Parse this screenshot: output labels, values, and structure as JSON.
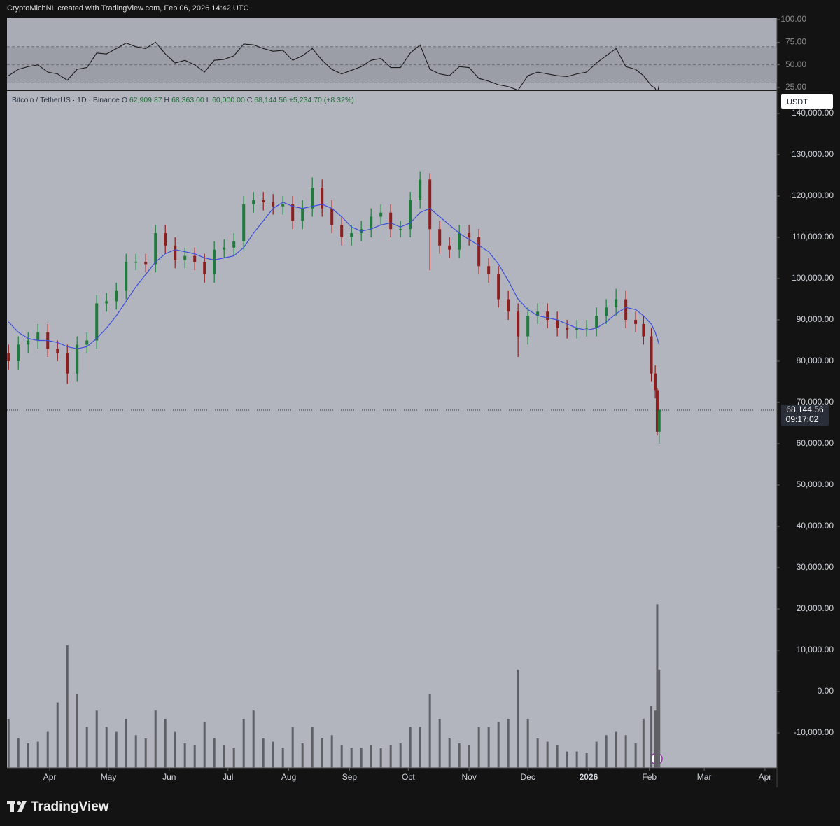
{
  "header": "CryptoMichNL created with TradingView.com, Feb 06, 2026 14:42 UTC",
  "brand": "TradingView",
  "chart_data": {
    "type": "candlestick",
    "legend_title": "Bitcoin / TetherUS · 1D · Binance",
    "legend_ohlc": [
      {
        "key": "O",
        "text": "62,909.87"
      },
      {
        "key": "H",
        "text": "68,363.00"
      },
      {
        "key": "L",
        "text": "60,000.00"
      },
      {
        "key": "C",
        "text": "68,144.56"
      }
    ],
    "change_text": "+5,234.70 (+8.32%)",
    "currency": "USDT",
    "last_price": {
      "value": 68144.56,
      "label": "68,144.56"
    },
    "countdown": "09:17:02",
    "up_color": "#1f7a3c",
    "down_color": "#8e1d1d",
    "ma_color": "#3d4fd6",
    "volume_color": "#5f6066",
    "rsi_color": "#1a1a1a",
    "x": [
      -21,
      -16,
      -11,
      -6,
      -1,
      4,
      9,
      14,
      19,
      24,
      29,
      34,
      39,
      44,
      49,
      54,
      59,
      64,
      69,
      74,
      79,
      84,
      89,
      94,
      99,
      104,
      109,
      114,
      119,
      124,
      129,
      134,
      139,
      144,
      149,
      154,
      159,
      164,
      169,
      174,
      179,
      184,
      189,
      194,
      199,
      204,
      209,
      214,
      219,
      224,
      229,
      234,
      239,
      244,
      249,
      254,
      259,
      264,
      269,
      274,
      279,
      284,
      289,
      294,
      299,
      303,
      307,
      309,
      310,
      311
    ],
    "xlim": [
      -21.8,
      371.1
    ],
    "xticks": [
      {
        "value": 0,
        "label": "Apr"
      },
      {
        "value": 30,
        "label": "May"
      },
      {
        "value": 61,
        "label": "Jun"
      },
      {
        "value": 91,
        "label": "Jul"
      },
      {
        "value": 122,
        "label": "Aug"
      },
      {
        "value": 153,
        "label": "Sep"
      },
      {
        "value": 183,
        "label": "Oct"
      },
      {
        "value": 214,
        "label": "Nov"
      },
      {
        "value": 244,
        "label": "Dec"
      },
      {
        "value": 275,
        "label": "2026"
      },
      {
        "value": 306,
        "label": "Feb"
      },
      {
        "value": 334,
        "label": "Mar"
      },
      {
        "value": 365,
        "label": "Apr"
      }
    ],
    "series": [
      {
        "name": "BTCUSDT",
        "open": [
          82000,
          80000,
          84000,
          85000,
          87000,
          83000,
          82000,
          77000,
          84000,
          85000,
          94000,
          94500,
          97000,
          104000,
          104000,
          103500,
          111000,
          108000,
          104500,
          105500,
          104000,
          101000,
          107000,
          107500,
          109000,
          118000,
          119000,
          118500,
          117500,
          118000,
          114000,
          117000,
          122000,
          117000,
          113000,
          110000,
          111000,
          112000,
          115000,
          116000,
          112000,
          112000,
          119000,
          124000,
          112000,
          108000,
          107000,
          111000,
          110000,
          103000,
          101000,
          95000,
          92000,
          86000,
          91000,
          92000,
          90000,
          88000,
          87500,
          88000,
          88000,
          91000,
          93000,
          95000,
          90000,
          89000,
          86000,
          77000,
          73000,
          62909.87
        ],
        "high": [
          84000,
          86000,
          87000,
          89000,
          89000,
          85000,
          84000,
          86000,
          87000,
          96000,
          96500,
          99000,
          106000,
          106000,
          106000,
          113000,
          113000,
          110000,
          107500,
          107500,
          106000,
          109000,
          109500,
          111000,
          120000,
          121000,
          121000,
          120500,
          120000,
          120000,
          119000,
          124500,
          124000,
          119000,
          115000,
          113000,
          114000,
          117000,
          118000,
          118000,
          114000,
          121000,
          126000,
          125500,
          114000,
          110000,
          113000,
          113000,
          112000,
          105000,
          103000,
          97000,
          94000,
          93000,
          94000,
          94000,
          92000,
          90000,
          90000,
          90000,
          93000,
          95000,
          97500,
          97000,
          92000,
          91000,
          88000,
          79000,
          73500,
          68363
        ],
        "low": [
          78000,
          78000,
          82000,
          83000,
          81000,
          80000,
          74500,
          75000,
          82000,
          83000,
          92000,
          92500,
          95000,
          102000,
          101500,
          101500,
          106000,
          102500,
          102500,
          102000,
          99000,
          99000,
          105000,
          105500,
          107000,
          116000,
          116500,
          115500,
          115500,
          112000,
          112000,
          115000,
          115000,
          111000,
          108000,
          108000,
          109000,
          110000,
          113000,
          110000,
          110000,
          110000,
          117000,
          102000,
          106000,
          105000,
          105000,
          108000,
          101000,
          99000,
          93000,
          90000,
          81000,
          84000,
          89000,
          88000,
          86000,
          85500,
          85500,
          86000,
          86000,
          89000,
          91000,
          88000,
          87000,
          84000,
          75000,
          71000,
          62000,
          60000
        ],
        "close": [
          80000,
          84000,
          85000,
          87000,
          83000,
          82000,
          77000,
          84000,
          85000,
          94000,
          94500,
          97000,
          104000,
          104000,
          103500,
          111000,
          108000,
          104500,
          105500,
          104000,
          101000,
          107000,
          107500,
          109000,
          118000,
          119000,
          118500,
          117500,
          118000,
          114000,
          117000,
          122000,
          117000,
          113000,
          110000,
          111000,
          112000,
          115000,
          116000,
          112000,
          112000,
          119000,
          124000,
          112000,
          108000,
          107000,
          111000,
          110000,
          103000,
          101000,
          95000,
          92000,
          86000,
          91000,
          92000,
          90000,
          88000,
          87500,
          88000,
          88000,
          91000,
          93000,
          95000,
          90000,
          89000,
          86000,
          77000,
          73000,
          62909.87,
          68144.56
        ],
        "ma": [
          89500,
          87000,
          85500,
          85000,
          85000,
          84500,
          83500,
          83000,
          83500,
          85500,
          88000,
          91000,
          94500,
          98000,
          101000,
          104000,
          106000,
          107000,
          106500,
          106000,
          105000,
          104500,
          105000,
          105500,
          107500,
          111000,
          114000,
          117000,
          118500,
          117500,
          117000,
          117500,
          118000,
          117000,
          115000,
          112500,
          111500,
          112000,
          113000,
          113500,
          112500,
          113500,
          116000,
          117000,
          115000,
          113000,
          111000,
          109500,
          108000,
          106500,
          103500,
          99500,
          95000,
          92500,
          91000,
          90500,
          90000,
          89000,
          88000,
          87500,
          88000,
          89500,
          91500,
          93000,
          92500,
          91000,
          89000,
          87000,
          85500,
          84000
        ],
        "volume": [
          30000,
          18000,
          15000,
          16000,
          22000,
          40000,
          75000,
          45000,
          25000,
          35000,
          25000,
          22000,
          30000,
          20000,
          18000,
          35000,
          30000,
          22000,
          15000,
          14000,
          28000,
          18000,
          14000,
          12000,
          30000,
          35000,
          18000,
          16000,
          12000,
          25000,
          15000,
          25000,
          18000,
          20000,
          14000,
          12000,
          12000,
          14000,
          12000,
          14000,
          15000,
          25000,
          25000,
          45000,
          30000,
          18000,
          15000,
          14000,
          25000,
          25000,
          28000,
          30000,
          60000,
          30000,
          18000,
          16000,
          14000,
          10000,
          10000,
          9000,
          16000,
          20000,
          22000,
          20000,
          15000,
          30000,
          38000,
          35000,
          100000,
          60000
        ],
        "rsi": [
          38,
          45,
          48,
          50,
          42,
          40,
          33,
          45,
          47,
          63,
          62,
          68,
          74,
          70,
          68,
          75,
          62,
          52,
          55,
          50,
          42,
          55,
          56,
          60,
          73,
          72,
          68,
          65,
          66,
          55,
          60,
          68,
          55,
          45,
          40,
          44,
          48,
          55,
          57,
          47,
          47,
          63,
          72,
          45,
          40,
          38,
          48,
          47,
          35,
          32,
          28,
          26,
          22,
          38,
          42,
          40,
          38,
          37,
          40,
          42,
          52,
          60,
          68,
          48,
          45,
          38,
          27,
          24,
          18,
          28
        ]
      }
    ],
    "ylim": [
      -18475,
      145424
    ],
    "yticks": [
      {
        "value": -10000,
        "label": "-10,000.00"
      },
      {
        "value": 0,
        "label": "0.00"
      },
      {
        "value": 10000,
        "label": "10,000.00"
      },
      {
        "value": 20000,
        "label": "20,000.00"
      },
      {
        "value": 30000,
        "label": "30,000.00"
      },
      {
        "value": 40000,
        "label": "40,000.00"
      },
      {
        "value": 50000,
        "label": "50,000.00"
      },
      {
        "value": 60000,
        "label": "60,000.00"
      },
      {
        "value": 70000,
        "label": "70,000.00"
      },
      {
        "value": 80000,
        "label": "80,000.00"
      },
      {
        "value": 90000,
        "label": "90,000.00"
      },
      {
        "value": 100000,
        "label": "100,000.00"
      },
      {
        "value": 110000,
        "label": "110,000.00"
      },
      {
        "value": 120000,
        "label": "120,000.00"
      },
      {
        "value": 130000,
        "label": "130,000.00"
      },
      {
        "value": 140000,
        "label": "140,000.00"
      }
    ],
    "vlim": [
      0,
      110000
    ],
    "rsilim": [
      22.7,
      102.3
    ],
    "rsi_band": [
      30,
      70
    ],
    "rsi_levels": [
      30,
      50,
      70
    ],
    "rsiticks": [
      {
        "value": 25,
        "label": "25.00"
      },
      {
        "value": 50,
        "label": "50.00"
      },
      {
        "value": 75,
        "label": "75.00"
      },
      {
        "value": 100,
        "label": "100.00"
      }
    ]
  }
}
